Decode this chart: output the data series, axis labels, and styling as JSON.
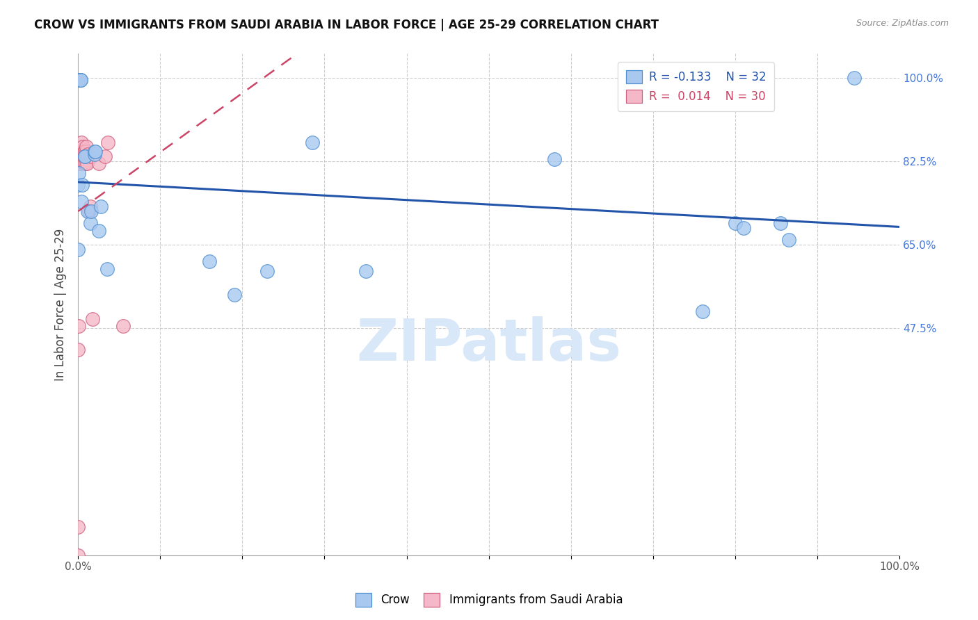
{
  "title": "CROW VS IMMIGRANTS FROM SAUDI ARABIA IN LABOR FORCE | AGE 25-29 CORRELATION CHART",
  "source": "Source: ZipAtlas.com",
  "ylabel": "In Labor Force | Age 25-29",
  "xlim": [
    0.0,
    1.0
  ],
  "ylim": [
    0.0,
    1.05
  ],
  "ytick_positions": [
    0.475,
    0.65,
    0.825,
    1.0
  ],
  "yticklabels": [
    "47.5%",
    "65.0%",
    "82.5%",
    "100.0%"
  ],
  "grid_color": "#cccccc",
  "background_color": "#ffffff",
  "crow_color": "#a8c8f0",
  "saudi_color": "#f5b8c8",
  "crow_edge_color": "#5090d0",
  "saudi_edge_color": "#d06080",
  "trend_crow_color": "#2255aa",
  "trend_saudi_color": "#cc4466",
  "legend_crow_r": "-0.133",
  "legend_crow_n": "32",
  "legend_saudi_r": "0.014",
  "legend_saudi_n": "30",
  "crow_x": [
    0.0,
    0.0,
    0.001,
    0.002,
    0.002,
    0.003,
    0.003,
    0.004,
    0.005,
    0.008,
    0.008,
    0.012,
    0.015,
    0.016,
    0.02,
    0.02,
    0.021,
    0.025,
    0.028,
    0.035,
    0.16,
    0.19,
    0.23,
    0.285,
    0.35,
    0.58,
    0.76,
    0.8,
    0.81,
    0.855,
    0.865,
    0.945
  ],
  "crow_y": [
    0.64,
    0.775,
    0.8,
    0.995,
    0.995,
    0.995,
    0.995,
    0.74,
    0.775,
    0.835,
    0.835,
    0.72,
    0.695,
    0.72,
    0.84,
    0.845,
    0.845,
    0.68,
    0.73,
    0.6,
    0.615,
    0.545,
    0.595,
    0.865,
    0.595,
    0.83,
    0.51,
    0.695,
    0.685,
    0.695,
    0.66,
    1.0
  ],
  "saudi_x": [
    0.0,
    0.0,
    0.0,
    0.001,
    0.001,
    0.002,
    0.002,
    0.003,
    0.004,
    0.004,
    0.005,
    0.005,
    0.006,
    0.007,
    0.007,
    0.008,
    0.008,
    0.009,
    0.01,
    0.01,
    0.011,
    0.012,
    0.013,
    0.015,
    0.016,
    0.018,
    0.025,
    0.033,
    0.036,
    0.055
  ],
  "saudi_y": [
    0.0,
    0.06,
    0.43,
    0.48,
    0.835,
    0.995,
    0.82,
    0.84,
    0.84,
    0.865,
    0.84,
    0.845,
    0.855,
    0.82,
    0.845,
    0.835,
    0.845,
    0.82,
    0.845,
    0.855,
    0.82,
    0.84,
    0.72,
    0.73,
    0.835,
    0.495,
    0.82,
    0.835,
    0.865,
    0.48
  ],
  "watermark_text": "ZIPatlas",
  "watermark_color": "#d8e8f8",
  "marker_size": 200,
  "title_fontsize": 12,
  "source_fontsize": 9,
  "tick_label_fontsize": 11,
  "legend_fontsize": 12
}
